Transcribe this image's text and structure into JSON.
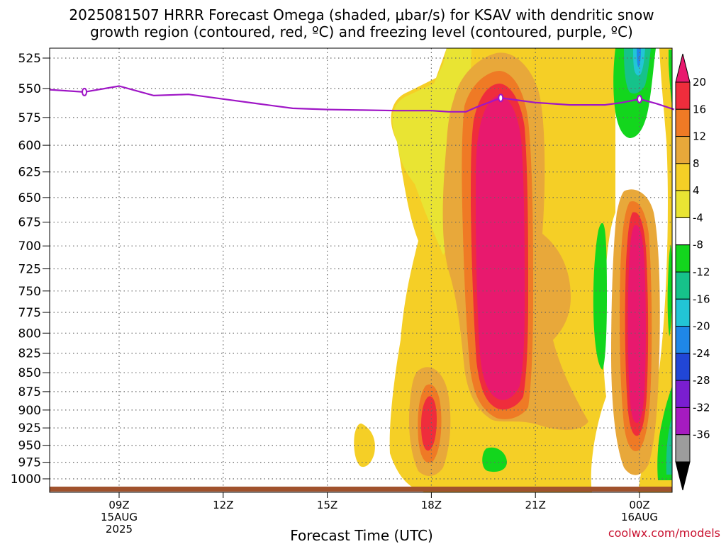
{
  "chart_data": {
    "type": "heatmap",
    "title": [
      "2025081507 HRRR Forecast Omega (shaded, μbar/s) for KSAV with dendritic snow",
      "growth region (contoured, red, ºC) and freezing level (contoured, purple, ºC)"
    ],
    "xlabel": "Forecast Time (UTC)",
    "credit": "coolwx.com/models",
    "x_ticks": [
      {
        "hour": 9,
        "lines": [
          "09Z",
          "15AUG",
          "2025"
        ]
      },
      {
        "hour": 12,
        "lines": [
          "12Z"
        ]
      },
      {
        "hour": 15,
        "lines": [
          "15Z"
        ]
      },
      {
        "hour": 18,
        "lines": [
          "18Z"
        ]
      },
      {
        "hour": 21,
        "lines": [
          "21Z"
        ]
      },
      {
        "hour": 24,
        "lines": [
          "00Z",
          "16AUG"
        ]
      }
    ],
    "xlim": [
      7,
      25
    ],
    "y_ticks": [
      525,
      550,
      575,
      600,
      625,
      650,
      675,
      700,
      725,
      750,
      775,
      800,
      825,
      850,
      875,
      900,
      925,
      950,
      975,
      1000
    ],
    "y_scale": "log-pressure",
    "ylim": [
      1030,
      510
    ],
    "grid": true,
    "colorbar": {
      "labels": [
        "20",
        "16",
        "12",
        "8",
        "4",
        "-4",
        "-8",
        "-12",
        "-16",
        "-20",
        "-24",
        "-28",
        "-32",
        "-36"
      ],
      "colors": [
        "#e8196e",
        "#ef2d3c",
        "#ef7a25",
        "#e8a83a",
        "#f5cf26",
        "#e9e433",
        "#ffffff",
        "#13d61d",
        "#16c28a",
        "#22c5d6",
        "#1f87e8",
        "#2146d6",
        "#7a1ed0",
        "#a61bc0",
        "#9c9c9c",
        "#000000"
      ]
    },
    "freezing_level": {
      "color": "#9f16c6",
      "points": [
        {
          "x": 7.0,
          "p": 551
        },
        {
          "x": 8.0,
          "p": 553
        },
        {
          "x": 9.0,
          "p": 548
        },
        {
          "x": 10.0,
          "p": 556
        },
        {
          "x": 11.0,
          "p": 555
        },
        {
          "x": 12.0,
          "p": 559
        },
        {
          "x": 13.0,
          "p": 563
        },
        {
          "x": 14.0,
          "p": 567
        },
        {
          "x": 15.0,
          "p": 568
        },
        {
          "x": 16.0,
          "p": 568.5
        },
        {
          "x": 17.0,
          "p": 569
        },
        {
          "x": 18.0,
          "p": 569
        },
        {
          "x": 18.5,
          "p": 570
        },
        {
          "x": 19.0,
          "p": 570
        },
        {
          "x": 19.3,
          "p": 566
        },
        {
          "x": 20.0,
          "p": 558
        },
        {
          "x": 20.5,
          "p": 560
        },
        {
          "x": 21.0,
          "p": 562
        },
        {
          "x": 22.0,
          "p": 564
        },
        {
          "x": 23.0,
          "p": 564
        },
        {
          "x": 23.5,
          "p": 562
        },
        {
          "x": 24.0,
          "p": 559
        },
        {
          "x": 24.5,
          "p": 563
        },
        {
          "x": 25.0,
          "p": 568
        }
      ],
      "markers": [
        {
          "x": 8.0,
          "p": 553
        },
        {
          "x": 20.0,
          "p": 558
        },
        {
          "x": 24.0,
          "p": 559
        }
      ]
    },
    "terrain_color": "#a0522d"
  }
}
